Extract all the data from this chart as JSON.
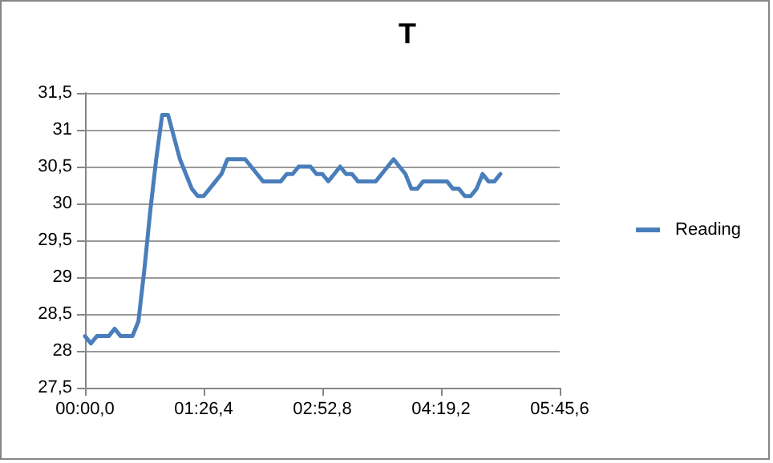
{
  "chart_data": {
    "type": "line",
    "title": "T",
    "categories": [
      "00:00,0",
      null,
      null,
      null,
      null,
      null,
      null,
      null,
      null,
      null,
      null,
      null,
      null,
      null,
      null,
      null,
      null,
      null,
      null,
      null,
      "01:26,4",
      null,
      null,
      null,
      null,
      null,
      null,
      null,
      null,
      null,
      null,
      null,
      null,
      null,
      null,
      null,
      null,
      null,
      null,
      null,
      "02:52,8",
      null,
      null,
      null,
      null,
      null,
      null,
      null,
      null,
      null,
      null,
      null,
      null,
      null,
      null,
      null,
      null,
      null,
      null,
      null,
      "04:19,2",
      null,
      null,
      null,
      null,
      null,
      null,
      null,
      null,
      null,
      null,
      null,
      null,
      null,
      null,
      null,
      null,
      null,
      null,
      null,
      "05:45,6"
    ],
    "series": [
      {
        "name": "Reading",
        "color": "#4a7ebb",
        "values": [
          28.2,
          28.1,
          28.2,
          28.2,
          28.2,
          28.3,
          28.2,
          28.2,
          28.2,
          28.4,
          29.1,
          29.9,
          30.6,
          31.2,
          31.2,
          30.9,
          30.6,
          30.4,
          30.2,
          30.1,
          30.1,
          30.2,
          30.3,
          30.4,
          30.6,
          30.6,
          30.6,
          30.6,
          30.5,
          30.4,
          30.3,
          30.3,
          30.3,
          30.3,
          30.4,
          30.4,
          30.5,
          30.5,
          30.5,
          30.4,
          30.4,
          30.3,
          30.4,
          30.5,
          30.4,
          30.4,
          30.3,
          30.3,
          30.3,
          30.3,
          30.4,
          30.5,
          30.6,
          30.5,
          30.4,
          30.2,
          30.2,
          30.3,
          30.3,
          30.3,
          30.3,
          30.3,
          30.2,
          30.2,
          30.1,
          30.1,
          30.2,
          30.4,
          30.3,
          30.3,
          30.4,
          null,
          null,
          null,
          null,
          null,
          null,
          null,
          null,
          null,
          null
        ]
      }
    ],
    "ylim": [
      27.5,
      31.5
    ],
    "yticks": [
      {
        "value": 27.5,
        "label": "27,5"
      },
      {
        "value": 28,
        "label": "28"
      },
      {
        "value": 28.5,
        "label": "28,5"
      },
      {
        "value": 29,
        "label": "29"
      },
      {
        "value": 29.5,
        "label": "29,5"
      },
      {
        "value": 30,
        "label": "30"
      },
      {
        "value": 30.5,
        "label": "30,5"
      },
      {
        "value": 31,
        "label": "31"
      },
      {
        "value": 31.5,
        "label": "31,5"
      }
    ],
    "grid": "y",
    "legend": "right",
    "marker": "none",
    "line_style": "solid"
  }
}
